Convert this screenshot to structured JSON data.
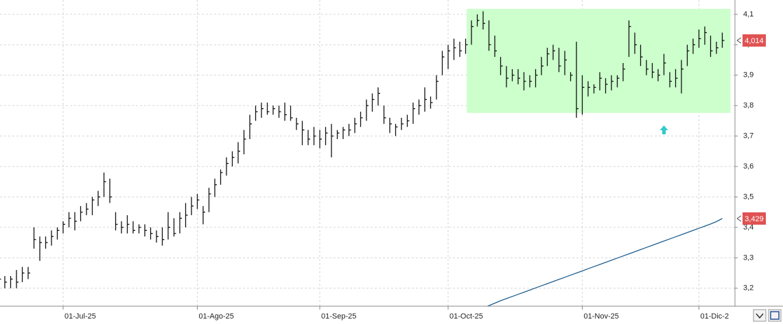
{
  "chart_data": {
    "type": "ohlc",
    "categories": [
      null,
      null,
      null,
      null,
      null,
      null,
      null,
      null,
      null,
      null,
      null,
      "01-Jul-25",
      null,
      null,
      null,
      null,
      null,
      null,
      null,
      null,
      null,
      null,
      null,
      null,
      null,
      null,
      null,
      null,
      null,
      null,
      null,
      null,
      null,
      null,
      "01-Ago-25",
      null,
      null,
      null,
      null,
      null,
      null,
      null,
      null,
      null,
      null,
      null,
      null,
      null,
      null,
      null,
      null,
      null,
      null,
      null,
      null,
      "01-Sep-25",
      null,
      null,
      null,
      null,
      null,
      null,
      null,
      null,
      null,
      null,
      null,
      null,
      null,
      null,
      null,
      null,
      null,
      null,
      null,
      null,
      null,
      "01-Oct-25",
      null,
      null,
      null,
      null,
      null,
      null,
      null,
      null,
      null,
      null,
      null,
      null,
      null,
      null,
      null,
      null,
      null,
      null,
      null,
      null,
      null,
      null,
      "01-Nov-25",
      null,
      null,
      null,
      null,
      null,
      null,
      null,
      null,
      null,
      null,
      null,
      null,
      null,
      null,
      null,
      null,
      null,
      null,
      null,
      "01-Dic-2",
      null,
      null,
      null,
      null
    ],
    "high": [
      3.25,
      3.24,
      3.24,
      3.26,
      3.27,
      3.27,
      3.4,
      3.37,
      3.37,
      3.39,
      3.4,
      3.42,
      3.45,
      3.45,
      3.47,
      3.48,
      3.5,
      3.52,
      3.58,
      3.56,
      3.45,
      3.42,
      3.44,
      3.42,
      3.41,
      3.41,
      3.4,
      3.39,
      3.4,
      3.45,
      3.43,
      3.45,
      3.48,
      3.5,
      3.51,
      3.47,
      3.53,
      3.56,
      3.59,
      3.63,
      3.65,
      3.68,
      3.72,
      3.77,
      3.8,
      3.81,
      3.81,
      3.8,
      3.8,
      3.81,
      3.8,
      3.76,
      3.75,
      3.72,
      3.73,
      3.72,
      3.73,
      3.74,
      3.72,
      3.73,
      3.74,
      3.76,
      3.78,
      3.82,
      3.84,
      3.86,
      3.8,
      3.76,
      3.74,
      3.76,
      3.77,
      3.81,
      3.82,
      3.86,
      3.83,
      3.9,
      3.98,
      4.0,
      4.02,
      4.01,
      4.02,
      4.08,
      4.1,
      4.11,
      4.08,
      4.03,
      3.96,
      3.93,
      3.92,
      3.92,
      3.91,
      3.9,
      3.92,
      3.96,
      3.99,
      4.0,
      3.99,
      3.98,
      3.91,
      4.01,
      3.9,
      3.88,
      3.87,
      3.91,
      3.89,
      3.9,
      3.9,
      3.94,
      4.08,
      4.04,
      4.0,
      3.95,
      3.94,
      3.92,
      3.97,
      3.91,
      3.92,
      3.95,
      4.0,
      4.02,
      4.05,
      4.06,
      4.03,
      4.01,
      4.04
    ],
    "low": [
      3.21,
      3.2,
      3.2,
      3.2,
      3.22,
      3.23,
      3.33,
      3.29,
      3.33,
      3.34,
      3.36,
      3.38,
      3.4,
      3.39,
      3.42,
      3.44,
      3.44,
      3.47,
      3.5,
      3.48,
      3.39,
      3.38,
      3.38,
      3.38,
      3.38,
      3.37,
      3.36,
      3.35,
      3.34,
      3.36,
      3.37,
      3.38,
      3.4,
      3.44,
      3.46,
      3.41,
      3.45,
      3.5,
      3.54,
      3.57,
      3.6,
      3.61,
      3.64,
      3.69,
      3.75,
      3.76,
      3.77,
      3.77,
      3.76,
      3.75,
      3.75,
      3.72,
      3.67,
      3.67,
      3.67,
      3.66,
      3.67,
      3.63,
      3.69,
      3.69,
      3.7,
      3.71,
      3.73,
      3.75,
      3.78,
      3.8,
      3.74,
      3.71,
      3.7,
      3.72,
      3.73,
      3.74,
      3.77,
      3.78,
      3.79,
      3.82,
      3.9,
      3.92,
      3.95,
      3.96,
      3.97,
      4.0,
      4.06,
      4.05,
      3.98,
      3.96,
      3.9,
      3.86,
      3.88,
      3.87,
      3.85,
      3.86,
      3.86,
      3.9,
      3.93,
      3.95,
      3.91,
      3.9,
      3.88,
      3.76,
      3.77,
      3.83,
      3.84,
      3.85,
      3.84,
      3.85,
      3.86,
      3.88,
      3.96,
      3.97,
      3.93,
      3.9,
      3.89,
      3.88,
      3.9,
      3.86,
      3.86,
      3.84,
      3.93,
      3.97,
      3.99,
      4.0,
      3.96,
      3.97,
      3.99
    ],
    "close": [
      3.23,
      3.22,
      3.23,
      3.22,
      3.25,
      3.25,
      3.36,
      3.35,
      3.35,
      3.37,
      3.39,
      3.41,
      3.43,
      3.42,
      3.45,
      3.46,
      3.49,
      3.5,
      3.55,
      3.5,
      3.41,
      3.4,
      3.41,
      3.39,
      3.4,
      3.39,
      3.38,
      3.37,
      3.36,
      3.4,
      3.38,
      3.43,
      3.44,
      3.47,
      3.49,
      3.45,
      3.51,
      3.54,
      3.58,
      3.61,
      3.63,
      3.65,
      3.69,
      3.74,
      3.78,
      3.79,
      3.78,
      3.79,
      3.78,
      3.77,
      3.76,
      3.74,
      3.72,
      3.69,
      3.7,
      3.69,
      3.71,
      3.7,
      3.71,
      3.72,
      3.72,
      3.74,
      3.76,
      3.8,
      3.82,
      3.84,
      3.76,
      3.74,
      3.73,
      3.74,
      3.75,
      3.79,
      3.8,
      3.82,
      3.81,
      3.88,
      3.96,
      3.98,
      3.99,
      3.98,
      4.0,
      4.06,
      4.08,
      4.07,
      4.0,
      3.98,
      3.93,
      3.89,
      3.9,
      3.89,
      3.88,
      3.88,
      3.9,
      3.93,
      3.97,
      3.98,
      3.93,
      3.95,
      3.9,
      3.79,
      3.86,
      3.86,
      3.86,
      3.89,
      3.87,
      3.88,
      3.89,
      3.92,
      4.06,
      4.0,
      3.96,
      3.92,
      3.91,
      3.9,
      3.94,
      3.88,
      3.89,
      3.92,
      3.98,
      4.0,
      4.02,
      4.04,
      3.98,
      3.99,
      4.014
    ],
    "color": "#111111",
    "lines": [
      {
        "color": "#1f5f8f",
        "values": [
          null,
          null,
          null,
          null,
          null,
          null,
          null,
          null,
          null,
          null,
          null,
          null,
          null,
          null,
          null,
          null,
          null,
          null,
          null,
          null,
          null,
          null,
          null,
          null,
          null,
          null,
          null,
          null,
          null,
          null,
          null,
          null,
          null,
          null,
          null,
          null,
          null,
          null,
          null,
          null,
          null,
          null,
          null,
          null,
          null,
          null,
          null,
          null,
          null,
          null,
          null,
          null,
          null,
          null,
          null,
          null,
          null,
          null,
          null,
          null,
          null,
          null,
          null,
          null,
          null,
          null,
          null,
          null,
          null,
          null,
          null,
          null,
          null,
          null,
          null,
          null,
          null,
          null,
          null,
          null,
          null,
          null,
          null,
          3.135,
          3.143,
          3.151,
          3.159,
          3.166,
          3.173,
          3.18,
          3.187,
          3.194,
          3.201,
          3.208,
          3.215,
          3.222,
          3.229,
          3.236,
          3.243,
          3.25,
          3.257,
          3.264,
          3.271,
          3.278,
          3.285,
          3.292,
          3.299,
          3.306,
          3.313,
          3.32,
          3.327,
          3.334,
          3.341,
          3.348,
          3.355,
          3.362,
          3.369,
          3.376,
          3.383,
          3.39,
          3.397,
          3.404,
          3.411,
          3.419,
          3.429
        ]
      }
    ],
    "ylim": [
      3.141,
      4.147
    ],
    "yticks": [
      {
        "value": 3.2,
        "label": "3,2"
      },
      {
        "value": 3.3,
        "label": "3,3"
      },
      {
        "value": 3.4,
        "label": "3,4"
      },
      {
        "value": 3.5,
        "label": "3,5"
      },
      {
        "value": 3.6,
        "label": "3,6"
      },
      {
        "value": 3.7,
        "label": "3,7"
      },
      {
        "value": 3.8,
        "label": "3,8"
      },
      {
        "value": 3.9,
        "label": "3,9"
      },
      {
        "value": 4.0,
        "label": "4,0"
      },
      {
        "value": 4.1,
        "label": "4,1"
      }
    ],
    "grid": true,
    "highlight": {
      "x": [
        80.2,
        125.4
      ],
      "y": [
        3.776,
        4.118
      ],
      "color": "#ccffcc"
    },
    "marker": {
      "x": 114,
      "y": 3.735,
      "color": "#33c9c9"
    },
    "last_labels": [
      {
        "value": 4.014,
        "label": "4,014",
        "color": "#e05252"
      },
      {
        "value": 3.429,
        "label": "3,429",
        "color": "#e05252"
      }
    ]
  }
}
